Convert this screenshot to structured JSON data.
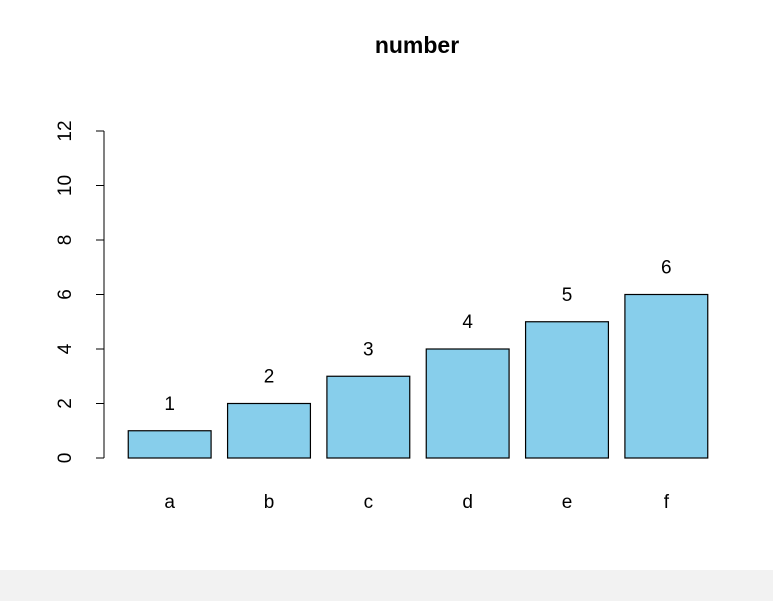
{
  "chart_data": {
    "type": "bar",
    "title": "number",
    "categories": [
      "a",
      "b",
      "c",
      "d",
      "e",
      "f"
    ],
    "values": [
      1,
      2,
      3,
      4,
      5,
      6
    ],
    "color": "#87ceeb",
    "ylim": [
      0,
      12
    ],
    "yticks": [
      0,
      2,
      4,
      6,
      8,
      10,
      12
    ],
    "grid": false
  }
}
